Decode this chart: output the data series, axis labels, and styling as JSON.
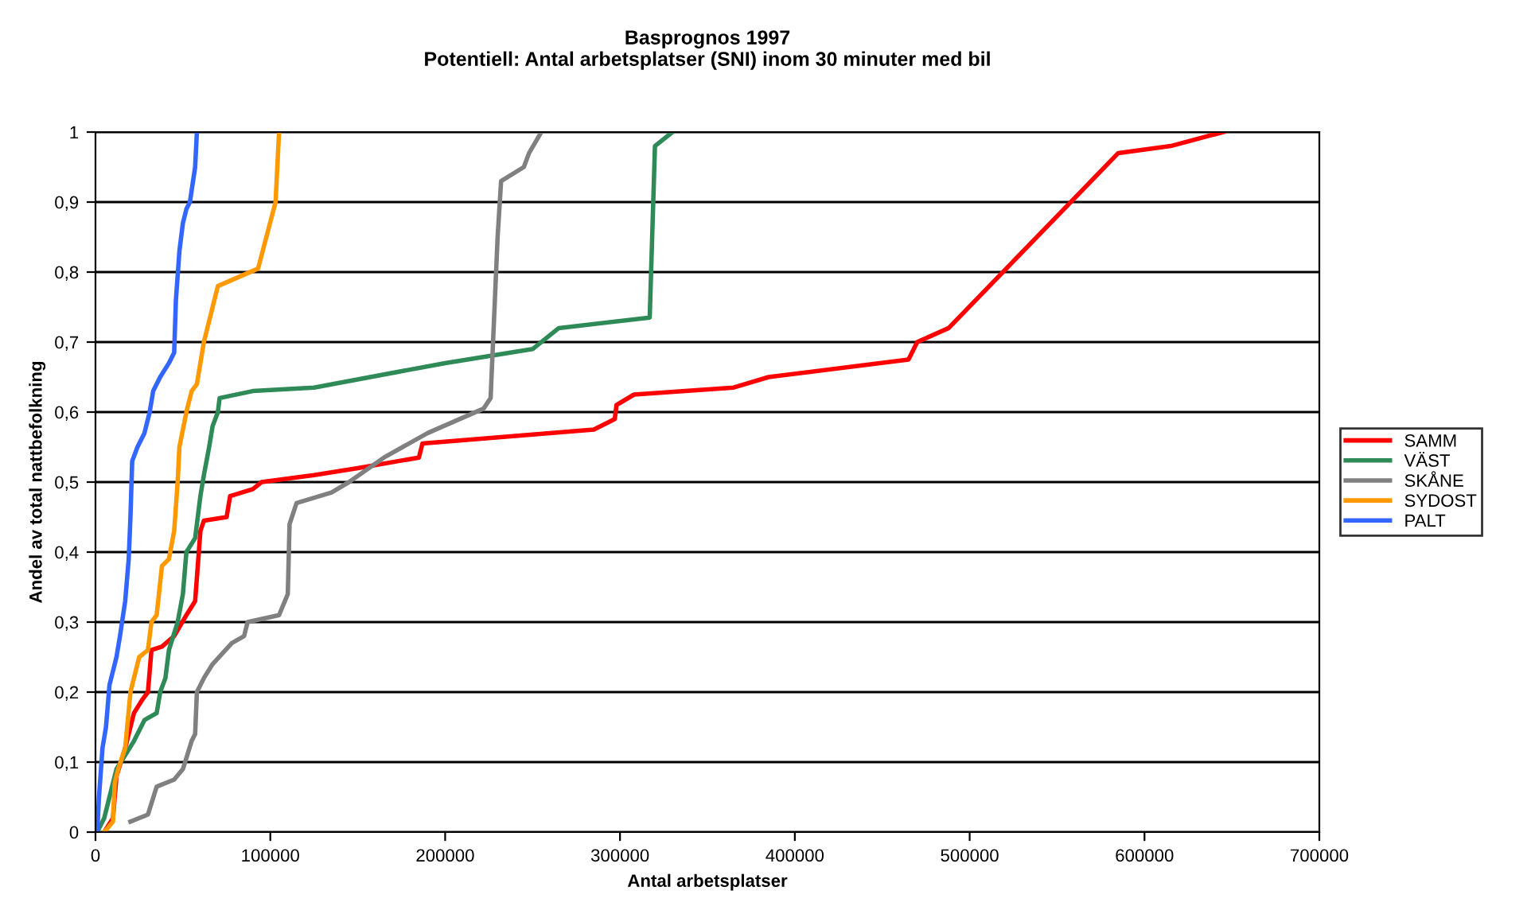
{
  "chart_data": {
    "type": "line",
    "title": "Basprognos 1997\nPotentiell: Antal arbetsplatser (SNI) inom 30 minuter med bil",
    "xlabel": "Antal arbetsplatser",
    "ylabel": "Andel av total nattbefolkning",
    "xlim": [
      0,
      700000
    ],
    "xticks": [
      0,
      100000,
      200000,
      300000,
      400000,
      500000,
      600000,
      700000
    ],
    "ylim": [
      0,
      1
    ],
    "yticks": [
      {
        "value": 0,
        "label": "0"
      },
      {
        "value": 0.1,
        "label": "0,1"
      },
      {
        "value": 0.2,
        "label": "0,2"
      },
      {
        "value": 0.3,
        "label": "0,3"
      },
      {
        "value": 0.4,
        "label": "0,4"
      },
      {
        "value": 0.5,
        "label": "0,5"
      },
      {
        "value": 0.6,
        "label": "0,6"
      },
      {
        "value": 0.7,
        "label": "0,7"
      },
      {
        "value": 0.8,
        "label": "0,8"
      },
      {
        "value": 0.9,
        "label": "0,9"
      },
      {
        "value": 1,
        "label": "1"
      }
    ],
    "grid": "y",
    "legend": "right",
    "marker": "none",
    "line_style": "solid",
    "series": [
      {
        "name": "SAMM",
        "color": "#ff0000",
        "x": [
          5000,
          10000,
          12000,
          17000,
          22000,
          27000,
          30000,
          32000,
          38000,
          45000,
          52000,
          57000,
          60000,
          62000,
          75000,
          77000,
          90000,
          95000,
          125000,
          150000,
          185000,
          187000,
          285000,
          297000,
          298000,
          308000,
          365000,
          385000,
          465000,
          470000,
          488000,
          585000,
          615000,
          645000
        ],
        "values": [
          0,
          0.02,
          0.08,
          0.12,
          0.17,
          0.19,
          0.2,
          0.26,
          0.265,
          0.28,
          0.31,
          0.33,
          0.43,
          0.445,
          0.45,
          0.48,
          0.49,
          0.5,
          0.51,
          0.52,
          0.535,
          0.555,
          0.575,
          0.59,
          0.61,
          0.625,
          0.635,
          0.65,
          0.675,
          0.7,
          0.72,
          0.97,
          0.98,
          1.0
        ]
      },
      {
        "name": "VÄST",
        "color": "#2e8b57",
        "x": [
          2000,
          5000,
          8000,
          12000,
          17000,
          22000,
          28000,
          35000,
          37000,
          40000,
          42000,
          47000,
          50000,
          52000,
          57000,
          60000,
          62000,
          65000,
          67000,
          70000,
          71000,
          90000,
          125000,
          200000,
          250000,
          265000,
          317000,
          320000,
          330000
        ],
        "values": [
          0.005,
          0.02,
          0.05,
          0.09,
          0.11,
          0.13,
          0.16,
          0.17,
          0.2,
          0.22,
          0.26,
          0.3,
          0.34,
          0.4,
          0.42,
          0.48,
          0.51,
          0.55,
          0.58,
          0.6,
          0.62,
          0.63,
          0.635,
          0.67,
          0.69,
          0.72,
          0.735,
          0.98,
          1.0
        ]
      },
      {
        "name": "SKÅNE",
        "color": "#808080",
        "x": [
          20000,
          30000,
          35000,
          45000,
          50000,
          55000,
          57000,
          58000,
          62000,
          67000,
          78000,
          85000,
          87000,
          105000,
          110000,
          111000,
          115000,
          135000,
          145000,
          165000,
          190000,
          222000,
          226000,
          230000,
          232000,
          245000,
          248000,
          255000
        ],
        "values": [
          0.015,
          0.025,
          0.065,
          0.075,
          0.09,
          0.13,
          0.14,
          0.2,
          0.22,
          0.24,
          0.27,
          0.28,
          0.3,
          0.31,
          0.34,
          0.44,
          0.47,
          0.485,
          0.5,
          0.535,
          0.57,
          0.605,
          0.62,
          0.85,
          0.93,
          0.95,
          0.97,
          1.0
        ]
      },
      {
        "name": "SYDOST",
        "color": "#ff9900",
        "x": [
          5000,
          10000,
          11000,
          13000,
          17000,
          20000,
          25000,
          30000,
          32000,
          35000,
          38000,
          42000,
          45000,
          47000,
          48000,
          52000,
          55000,
          58000,
          62000,
          70000,
          93000,
          103000,
          105000
        ],
        "values": [
          0.0,
          0.015,
          0.07,
          0.09,
          0.12,
          0.2,
          0.25,
          0.26,
          0.3,
          0.31,
          0.38,
          0.39,
          0.43,
          0.5,
          0.55,
          0.6,
          0.63,
          0.64,
          0.7,
          0.78,
          0.805,
          0.9,
          1.0
        ]
      },
      {
        "name": "PALT",
        "color": "#3366ff",
        "x": [
          1000,
          2000,
          4000,
          6000,
          8000,
          10000,
          12000,
          14000,
          17000,
          19000,
          20000,
          21000,
          24000,
          28000,
          31000,
          33000,
          37000,
          42000,
          45000,
          46000,
          48000,
          50000,
          52000,
          54000,
          57000,
          58000
        ],
        "values": [
          0.0,
          0.05,
          0.12,
          0.15,
          0.21,
          0.23,
          0.25,
          0.28,
          0.33,
          0.39,
          0.45,
          0.53,
          0.55,
          0.57,
          0.6,
          0.63,
          0.65,
          0.67,
          0.685,
          0.76,
          0.83,
          0.87,
          0.89,
          0.9,
          0.95,
          1.0
        ]
      }
    ]
  }
}
